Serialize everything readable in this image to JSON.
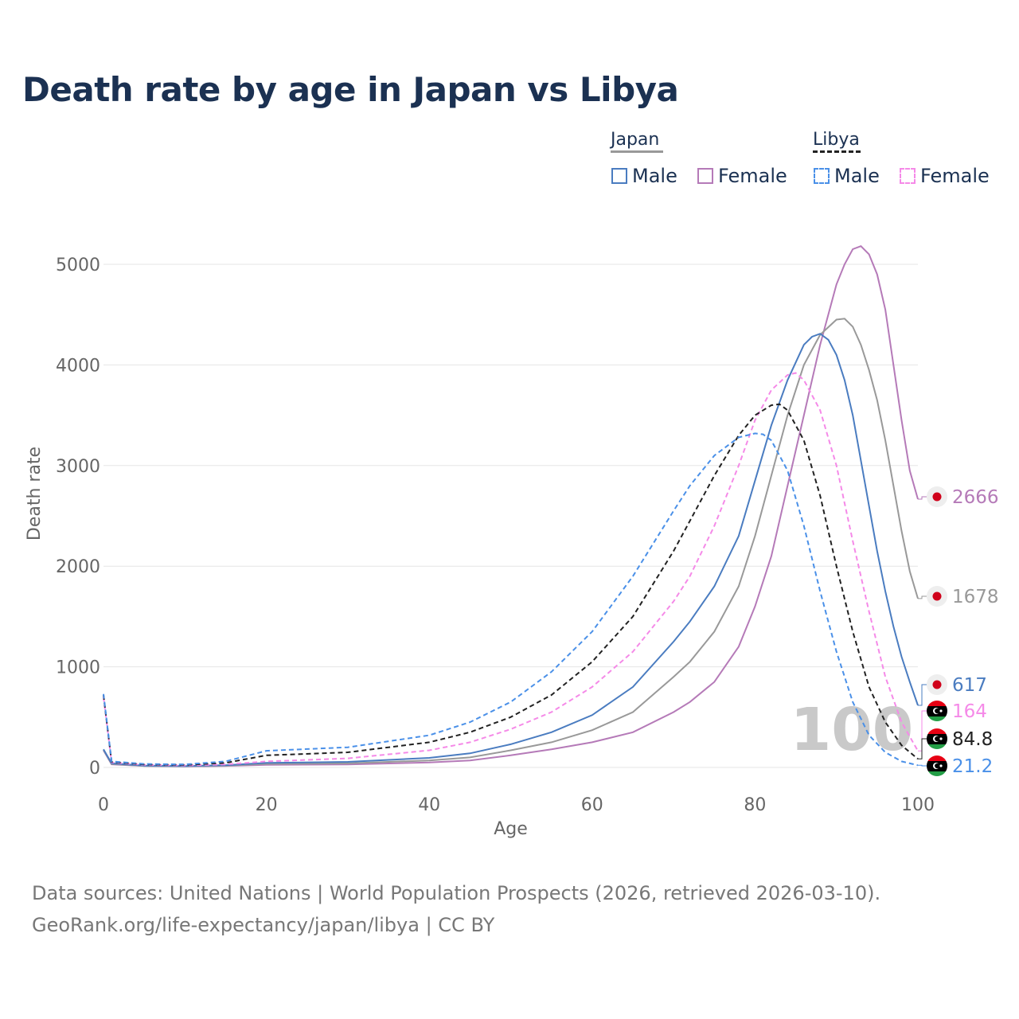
{
  "title": "Death rate by age in Japan vs Libya",
  "legend": {
    "japan": {
      "label": "Japan",
      "male": "Male",
      "female": "Female"
    },
    "libya": {
      "label": "Libya",
      "male": "Male",
      "female": "Female"
    }
  },
  "colors": {
    "japan_male": "#4a7cc0",
    "japan_female": "#b57ab8",
    "japan_total": "#999999",
    "libya_male": "#4a90e8",
    "libya_female": "#f58ae8",
    "libya_total": "#222222"
  },
  "footer": {
    "line1": "Data sources: United Nations | World Population Prospects (2026, retrieved 2026-03-10).",
    "line2": "GeoRank.org/life-expectancy/japan/libya | CC BY"
  },
  "chart_data": {
    "type": "line",
    "title": "Death rate by age in Japan vs Libya",
    "xlabel": "Age",
    "ylabel": "Death rate",
    "xlim": [
      0,
      100
    ],
    "ylim": [
      0,
      5300
    ],
    "x_ticks": [
      0,
      20,
      40,
      60,
      80,
      100
    ],
    "y_ticks": [
      0,
      1000,
      2000,
      3000,
      4000,
      5000
    ],
    "grid": true,
    "watermark": "100",
    "series": [
      {
        "name": "Japan Female",
        "key": "japan_female",
        "color": "#b57ab8",
        "dash": "",
        "end_label": "2666",
        "flag": "japan",
        "points": [
          [
            0,
            170
          ],
          [
            1,
            30
          ],
          [
            5,
            15
          ],
          [
            10,
            10
          ],
          [
            15,
            15
          ],
          [
            20,
            25
          ],
          [
            30,
            30
          ],
          [
            40,
            50
          ],
          [
            45,
            70
          ],
          [
            50,
            120
          ],
          [
            55,
            180
          ],
          [
            60,
            250
          ],
          [
            65,
            350
          ],
          [
            70,
            550
          ],
          [
            72,
            650
          ],
          [
            75,
            850
          ],
          [
            78,
            1200
          ],
          [
            80,
            1600
          ],
          [
            82,
            2100
          ],
          [
            84,
            2800
          ],
          [
            86,
            3500
          ],
          [
            88,
            4200
          ],
          [
            90,
            4800
          ],
          [
            91,
            5000
          ],
          [
            92,
            5150
          ],
          [
            93,
            5180
          ],
          [
            94,
            5100
          ],
          [
            95,
            4900
          ],
          [
            96,
            4550
          ],
          [
            97,
            4000
          ],
          [
            98,
            3450
          ],
          [
            99,
            2950
          ],
          [
            100,
            2666
          ]
        ]
      },
      {
        "name": "Japan Total",
        "key": "japan_total",
        "color": "#999999",
        "dash": "",
        "end_label": "1678",
        "flag": "japan",
        "points": [
          [
            0,
            175
          ],
          [
            1,
            35
          ],
          [
            5,
            15
          ],
          [
            10,
            12
          ],
          [
            15,
            18
          ],
          [
            20,
            35
          ],
          [
            30,
            40
          ],
          [
            40,
            70
          ],
          [
            45,
            100
          ],
          [
            50,
            170
          ],
          [
            55,
            250
          ],
          [
            60,
            370
          ],
          [
            65,
            550
          ],
          [
            70,
            900
          ],
          [
            72,
            1050
          ],
          [
            75,
            1350
          ],
          [
            78,
            1800
          ],
          [
            80,
            2300
          ],
          [
            82,
            2900
          ],
          [
            84,
            3500
          ],
          [
            86,
            4000
          ],
          [
            88,
            4300
          ],
          [
            90,
            4450
          ],
          [
            91,
            4460
          ],
          [
            92,
            4380
          ],
          [
            93,
            4200
          ],
          [
            94,
            3950
          ],
          [
            95,
            3650
          ],
          [
            96,
            3250
          ],
          [
            97,
            2800
          ],
          [
            98,
            2350
          ],
          [
            99,
            1950
          ],
          [
            100,
            1678
          ]
        ]
      },
      {
        "name": "Japan Male",
        "key": "japan_male",
        "color": "#4a7cc0",
        "dash": "",
        "end_label": "617",
        "flag": "japan",
        "points": [
          [
            0,
            180
          ],
          [
            1,
            40
          ],
          [
            5,
            18
          ],
          [
            10,
            14
          ],
          [
            15,
            22
          ],
          [
            20,
            45
          ],
          [
            30,
            55
          ],
          [
            40,
            95
          ],
          [
            45,
            140
          ],
          [
            50,
            230
          ],
          [
            55,
            350
          ],
          [
            60,
            520
          ],
          [
            65,
            800
          ],
          [
            70,
            1250
          ],
          [
            72,
            1450
          ],
          [
            75,
            1800
          ],
          [
            78,
            2300
          ],
          [
            80,
            2850
          ],
          [
            82,
            3400
          ],
          [
            84,
            3850
          ],
          [
            86,
            4200
          ],
          [
            87,
            4280
          ],
          [
            88,
            4310
          ],
          [
            89,
            4250
          ],
          [
            90,
            4100
          ],
          [
            91,
            3850
          ],
          [
            92,
            3500
          ],
          [
            93,
            3050
          ],
          [
            94,
            2600
          ],
          [
            95,
            2150
          ],
          [
            96,
            1750
          ],
          [
            97,
            1400
          ],
          [
            98,
            1100
          ],
          [
            99,
            850
          ],
          [
            100,
            617
          ]
        ]
      },
      {
        "name": "Libya Female",
        "key": "libya_female",
        "color": "#f58ae8",
        "dash": "6,4",
        "end_label": "164",
        "flag": "libya",
        "points": [
          [
            0,
            700
          ],
          [
            1,
            50
          ],
          [
            5,
            25
          ],
          [
            10,
            20
          ],
          [
            15,
            30
          ],
          [
            20,
            60
          ],
          [
            30,
            90
          ],
          [
            40,
            170
          ],
          [
            45,
            250
          ],
          [
            50,
            380
          ],
          [
            55,
            550
          ],
          [
            60,
            800
          ],
          [
            65,
            1150
          ],
          [
            70,
            1650
          ],
          [
            72,
            1900
          ],
          [
            75,
            2400
          ],
          [
            78,
            3000
          ],
          [
            80,
            3450
          ],
          [
            82,
            3750
          ],
          [
            84,
            3900
          ],
          [
            85,
            3920
          ],
          [
            86,
            3850
          ],
          [
            88,
            3550
          ],
          [
            90,
            3000
          ],
          [
            92,
            2250
          ],
          [
            94,
            1550
          ],
          [
            96,
            900
          ],
          [
            98,
            450
          ],
          [
            100,
            164
          ]
        ]
      },
      {
        "name": "Libya Total",
        "key": "libya_total",
        "color": "#222222",
        "dash": "6,4",
        "end_label": "84.8",
        "flag": "libya",
        "points": [
          [
            0,
            720
          ],
          [
            1,
            55
          ],
          [
            5,
            30
          ],
          [
            10,
            25
          ],
          [
            15,
            45
          ],
          [
            20,
            120
          ],
          [
            30,
            150
          ],
          [
            40,
            250
          ],
          [
            45,
            350
          ],
          [
            50,
            500
          ],
          [
            55,
            720
          ],
          [
            60,
            1050
          ],
          [
            65,
            1500
          ],
          [
            70,
            2150
          ],
          [
            72,
            2450
          ],
          [
            75,
            2900
          ],
          [
            78,
            3300
          ],
          [
            80,
            3500
          ],
          [
            82,
            3600
          ],
          [
            83,
            3610
          ],
          [
            84,
            3550
          ],
          [
            86,
            3250
          ],
          [
            88,
            2700
          ],
          [
            90,
            2000
          ],
          [
            92,
            1350
          ],
          [
            94,
            800
          ],
          [
            96,
            450
          ],
          [
            98,
            220
          ],
          [
            100,
            84.8
          ]
        ]
      },
      {
        "name": "Libya Male",
        "key": "libya_male",
        "color": "#4a90e8",
        "dash": "6,4",
        "end_label": "21.2",
        "flag": "libya",
        "points": [
          [
            0,
            730
          ],
          [
            1,
            60
          ],
          [
            5,
            35
          ],
          [
            10,
            30
          ],
          [
            15,
            60
          ],
          [
            20,
            165
          ],
          [
            30,
            200
          ],
          [
            40,
            320
          ],
          [
            45,
            450
          ],
          [
            50,
            650
          ],
          [
            55,
            950
          ],
          [
            60,
            1350
          ],
          [
            65,
            1900
          ],
          [
            70,
            2550
          ],
          [
            72,
            2800
          ],
          [
            75,
            3100
          ],
          [
            78,
            3280
          ],
          [
            80,
            3320
          ],
          [
            81,
            3310
          ],
          [
            82,
            3250
          ],
          [
            84,
            2950
          ],
          [
            86,
            2400
          ],
          [
            88,
            1750
          ],
          [
            90,
            1150
          ],
          [
            92,
            650
          ],
          [
            94,
            320
          ],
          [
            96,
            150
          ],
          [
            98,
            60
          ],
          [
            100,
            21.2
          ]
        ]
      }
    ]
  }
}
